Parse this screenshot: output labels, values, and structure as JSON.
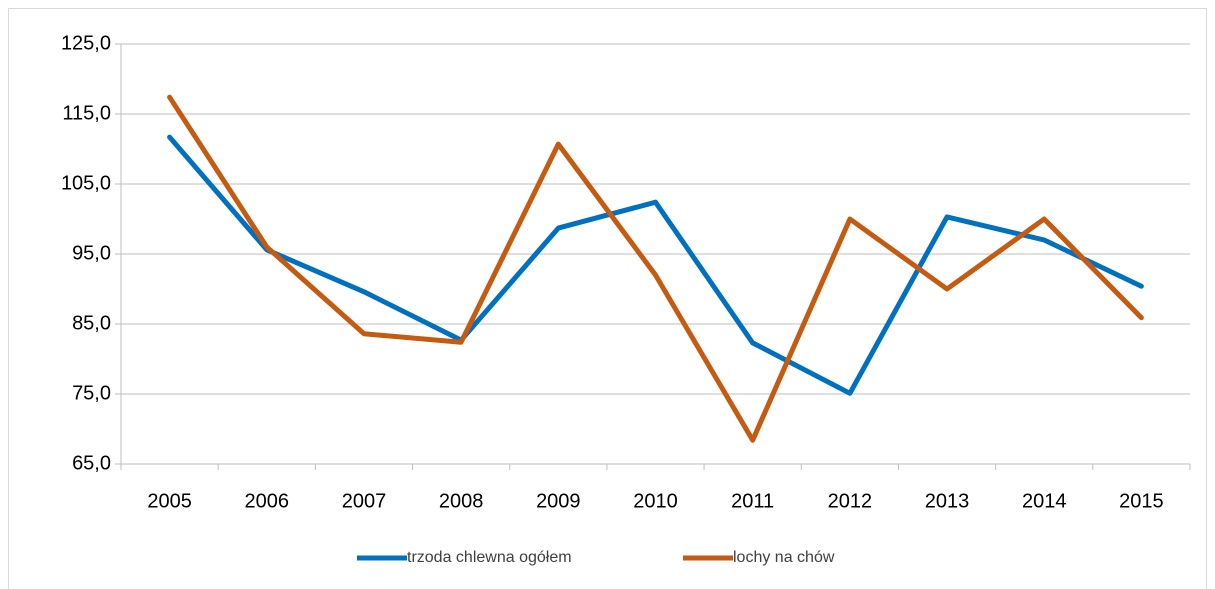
{
  "chart_data": {
    "type": "line",
    "categories": [
      "2005",
      "2006",
      "2007",
      "2008",
      "2009",
      "2010",
      "2011",
      "2012",
      "2013",
      "2014",
      "2015"
    ],
    "series": [
      {
        "name": "trzoda chlewna ogółem",
        "color": "#0070c0",
        "values": [
          111.7,
          95.6,
          89.6,
          82.7,
          98.7,
          102.4,
          82.3,
          75.1,
          100.3,
          97.0,
          90.4
        ]
      },
      {
        "name": "lochy na chów",
        "color": "#c55a11",
        "values": [
          117.4,
          96.0,
          83.6,
          82.4,
          110.7,
          92.0,
          68.4,
          100.0,
          90.0,
          100.0,
          85.9
        ]
      }
    ],
    "ylim": [
      65,
      125
    ],
    "yticks": [
      {
        "value": 65,
        "label": "65,0"
      },
      {
        "value": 75,
        "label": "75,0"
      },
      {
        "value": 85,
        "label": "85,0"
      },
      {
        "value": 95,
        "label": "95,0"
      },
      {
        "value": 105,
        "label": "105,0"
      },
      {
        "value": 115,
        "label": "115,0"
      },
      {
        "value": 125,
        "label": "125,0"
      }
    ],
    "grid": true,
    "legend": "bottom"
  }
}
